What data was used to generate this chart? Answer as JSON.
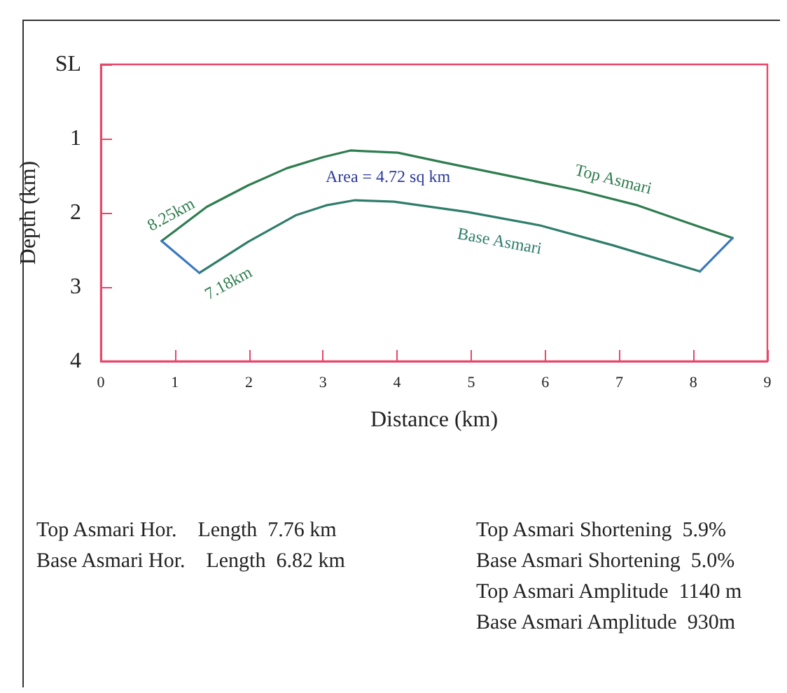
{
  "chart_data": {
    "type": "line",
    "xlabel": "Distance (km)",
    "ylabel": "Depth (km)",
    "xlim": [
      0,
      9
    ],
    "xticks": [
      0,
      1,
      2,
      3,
      4,
      5,
      6,
      7,
      8,
      9
    ],
    "ylim": [
      4,
      0
    ],
    "yticks": [
      {
        "value": 0,
        "label": "SL"
      },
      1,
      2,
      3,
      4
    ],
    "grid": false,
    "legend": false,
    "marker": "none",
    "line_style": "solid",
    "series": [
      {
        "name": "Top Asmari",
        "color": "#2e7d4f",
        "x": [
          0.82,
          1.43,
          1.99,
          2.51,
          3.0,
          3.37,
          4.01,
          4.62,
          5.6,
          6.46,
          7.25,
          7.91,
          8.53
        ],
        "values": [
          2.38,
          1.92,
          1.63,
          1.4,
          1.25,
          1.16,
          1.19,
          1.32,
          1.52,
          1.7,
          1.9,
          2.13,
          2.34
        ]
      },
      {
        "name": "Base Asmari",
        "color": "#2e7d6a",
        "x": [
          1.33,
          1.99,
          2.64,
          3.04,
          3.43,
          3.96,
          4.95,
          5.93,
          6.92,
          8.09
        ],
        "values": [
          2.81,
          2.39,
          2.03,
          1.9,
          1.83,
          1.85,
          1.99,
          2.17,
          2.44,
          2.79
        ]
      },
      {
        "color": "#3a78c0",
        "x": [
          0.82,
          1.33
        ],
        "values": [
          2.38,
          2.81
        ]
      },
      {
        "color": "#3a78c0",
        "x": [
          8.53,
          8.09
        ],
        "values": [
          2.34,
          2.79
        ]
      }
    ],
    "annotations": [
      "8.25km",
      "7.18km",
      "Area = 4.72 sq km",
      "Top Asmari Hor.    Length  7.76 km",
      "Base Asmari Hor.    Length  6.82 km",
      "Top Asmari Shortening  5.9%",
      "Base Asmari Shortening  5.0%",
      "Top Asmari Amplitude  1140 m",
      "Base Asmari Amplitude  930m"
    ]
  }
}
